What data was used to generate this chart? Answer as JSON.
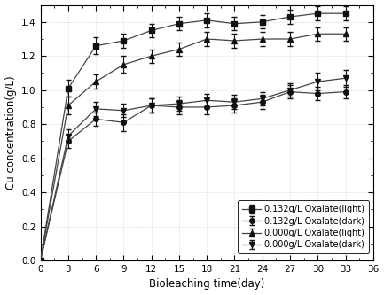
{
  "x": [
    0,
    3,
    6,
    9,
    12,
    15,
    18,
    21,
    24,
    27,
    30,
    33
  ],
  "series": {
    "0.132g/L Oxalate(light)": {
      "y": [
        0.0,
        1.01,
        1.26,
        1.29,
        1.35,
        1.39,
        1.41,
        1.39,
        1.4,
        1.43,
        1.45,
        1.45
      ],
      "yerr": [
        0.0,
        0.05,
        0.05,
        0.04,
        0.04,
        0.04,
        0.04,
        0.04,
        0.04,
        0.04,
        0.04,
        0.04
      ],
      "marker": "s",
      "label": "0.132g/L Oxalate(light)"
    },
    "0.132g/L Oxalate(dark)": {
      "y": [
        0.0,
        0.7,
        0.83,
        0.81,
        0.91,
        0.9,
        0.9,
        0.91,
        0.93,
        0.99,
        0.98,
        0.99
      ],
      "yerr": [
        0.0,
        0.04,
        0.04,
        0.05,
        0.04,
        0.04,
        0.04,
        0.04,
        0.04,
        0.04,
        0.04,
        0.04
      ],
      "marker": "o",
      "label": "0.132g/L Oxalate(dark)"
    },
    "0.000g/L Oxalate(light)": {
      "y": [
        0.0,
        0.91,
        1.05,
        1.15,
        1.2,
        1.24,
        1.3,
        1.29,
        1.3,
        1.3,
        1.33,
        1.33
      ],
      "yerr": [
        0.0,
        0.05,
        0.04,
        0.05,
        0.04,
        0.04,
        0.04,
        0.04,
        0.04,
        0.04,
        0.04,
        0.04
      ],
      "marker": "^",
      "label": "0.000g/L Oxalate(light)"
    },
    "0.000g/L Oxalate(dark)": {
      "y": [
        0.0,
        0.73,
        0.89,
        0.88,
        0.91,
        0.92,
        0.94,
        0.93,
        0.95,
        1.0,
        1.05,
        1.07
      ],
      "yerr": [
        0.0,
        0.04,
        0.04,
        0.04,
        0.04,
        0.04,
        0.04,
        0.04,
        0.04,
        0.04,
        0.05,
        0.05
      ],
      "marker": "v",
      "label": "0.000g/L Oxalate(dark)"
    }
  },
  "xlabel": "Bioleaching time(day)",
  "ylabel": "Cu concentration(g/L)",
  "xlim": [
    0,
    36
  ],
  "ylim": [
    0.0,
    1.5
  ],
  "xticks": [
    0,
    3,
    6,
    9,
    12,
    15,
    18,
    21,
    24,
    27,
    30,
    33,
    36
  ],
  "yticks": [
    0.0,
    0.2,
    0.4,
    0.6,
    0.8,
    1.0,
    1.2,
    1.4
  ],
  "line_color": "#444444",
  "marker_color": "#111111",
  "figsize": [
    4.33,
    3.33
  ],
  "dpi": 100
}
